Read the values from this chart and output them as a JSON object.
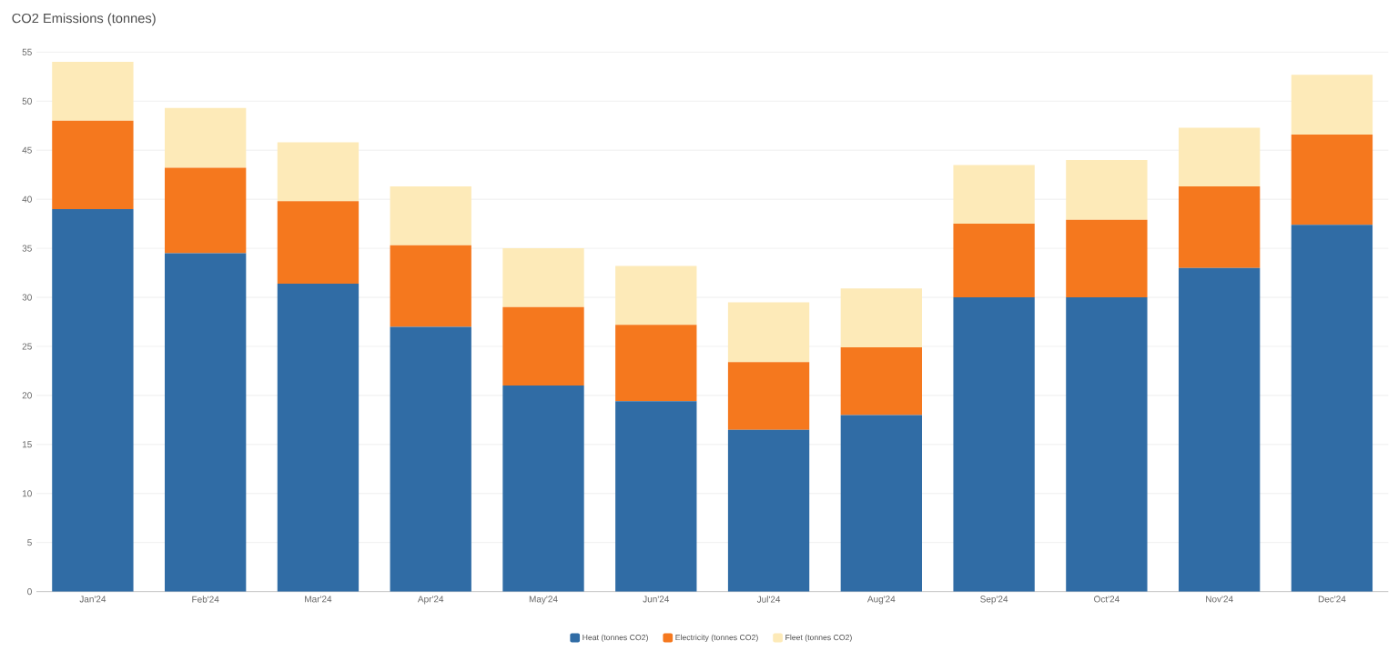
{
  "chart_data": {
    "type": "bar",
    "title": "CO2 Emissions (tonnes)",
    "stacked": true,
    "grid": "y",
    "legend": "bottom",
    "categories": [
      "Jan'24",
      "Feb'24",
      "Mar'24",
      "Apr'24",
      "May'24",
      "Jun'24",
      "Jul'24",
      "Aug'24",
      "Sep'24",
      "Oct'24",
      "Nov'24",
      "Dec'24"
    ],
    "ylim": [
      0,
      55
    ],
    "yticks": [
      0,
      5,
      10,
      15,
      20,
      25,
      30,
      35,
      40,
      45,
      50,
      55
    ],
    "series": [
      {
        "name": "Heat (tonnes CO2)",
        "color": "#306ca5",
        "values": [
          39,
          34.5,
          31.4,
          27,
          21,
          19.4,
          16.5,
          18,
          30,
          30,
          33,
          37.4
        ]
      },
      {
        "name": "Electricity (tonnes CO2)",
        "color": "#f5781e",
        "values": [
          9,
          8.7,
          8.4,
          8.3,
          8,
          7.8,
          6.9,
          6.9,
          7.5,
          7.9,
          8.3,
          9.2
        ]
      },
      {
        "name": "Fleet (tonnes CO2)",
        "color": "#fdeab8",
        "values": [
          6,
          6.1,
          6,
          6,
          6,
          6,
          6.1,
          6,
          6,
          6.1,
          6,
          6.1
        ]
      }
    ]
  }
}
